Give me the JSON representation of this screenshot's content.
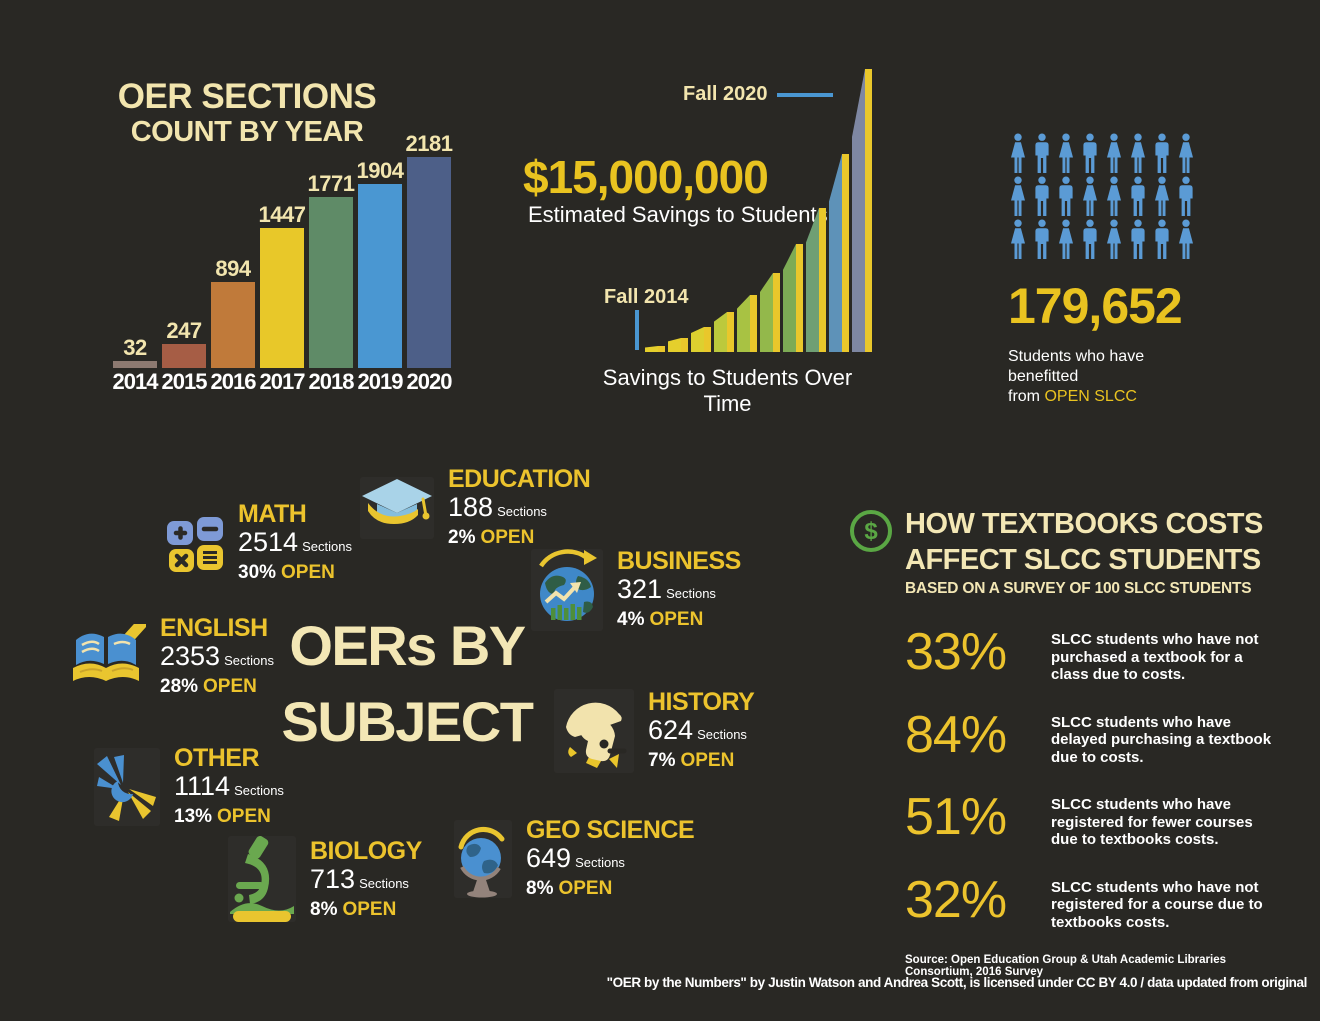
{
  "colors": {
    "background": "#292824",
    "cream": "#f2e5ae",
    "yellow": "#e9c320",
    "white": "#ffffff",
    "person_blue": "#5b9bd5",
    "dollar_green": "#5aa744"
  },
  "chart_data": [
    {
      "type": "bar",
      "title": "OER SECTIONS",
      "subtitle": "COUNT BY YEAR",
      "categories": [
        "2014",
        "2015",
        "2016",
        "2017",
        "2018",
        "2019",
        "2020"
      ],
      "values": [
        32,
        247,
        894,
        1447,
        1771,
        1904,
        2181
      ],
      "bar_colors": [
        "#8d7a71",
        "#a65d45",
        "#c07a3a",
        "#e8c829",
        "#5f8b67",
        "#4a97d2",
        "#4d5f88"
      ],
      "ylim": [
        0,
        2181
      ],
      "value_labels_shown": true,
      "grid": "off",
      "legend": "none"
    },
    {
      "type": "area",
      "title": "Savings to Students Over Time",
      "callout_value": "$15,000,000",
      "callout_label": "Estimated Savings to Students",
      "start_label": "Fall 2014",
      "end_label": "Fall 2020",
      "x_range": [
        "Fall 2014",
        "Fall 2020"
      ],
      "values_relative": [
        2,
        5,
        9,
        14,
        20,
        28,
        38,
        51,
        70,
        100
      ],
      "bar_colors": [
        "#e5cf2c",
        "#e5cf2c",
        "#ddd02f",
        "#bcc93c",
        "#a8c243",
        "#93b84b",
        "#7dab55",
        "#6f9f74",
        "#5e92b8",
        "#7e87a2"
      ],
      "stripe_color": "#e9c72b",
      "grid": "off",
      "legend": "none"
    }
  ],
  "students": {
    "count": "179,652",
    "caption_line1": "Students who have benefitted",
    "caption_line2_prefix": "from ",
    "caption_line2_highlight": "OPEN SLCC",
    "rows": [
      "FMFMFFMF",
      "FMMFFMFM",
      "FMFMFMMF"
    ]
  },
  "subjects": {
    "title_line1": "OERs BY",
    "title_line2": "SUBJECT",
    "sections_label": "Sections",
    "open_label": "OPEN",
    "items": [
      {
        "name": "MATH",
        "sections": "2514",
        "open": "30%"
      },
      {
        "name": "EDUCATION",
        "sections": "188",
        "open": "2%"
      },
      {
        "name": "ENGLISH",
        "sections": "2353",
        "open": "28%"
      },
      {
        "name": "BUSINESS",
        "sections": "321",
        "open": "4%"
      },
      {
        "name": "OTHER",
        "sections": "1114",
        "open": "13%"
      },
      {
        "name": "HISTORY",
        "sections": "624",
        "open": "7%"
      },
      {
        "name": "BIOLOGY",
        "sections": "713",
        "open": "8%"
      },
      {
        "name": "GEO SCIENCE",
        "sections": "649",
        "open": "8%"
      }
    ]
  },
  "survey": {
    "title_line1": "HOW TEXTBOOKS COSTS",
    "title_line2": "AFFECT SLCC STUDENTS",
    "subtitle": "BASED ON A SURVEY OF 100 SLCC STUDENTS",
    "stats": [
      {
        "percent": "33%",
        "description": "SLCC students who have not purchased a textbook for a class due to costs."
      },
      {
        "percent": "84%",
        "description": "SLCC students who have delayed purchasing a textbook due to costs."
      },
      {
        "percent": "51%",
        "description": "SLCC students who have registered for fewer courses due to textbooks costs."
      },
      {
        "percent": "32%",
        "description": "SLCC students who have not registered for a course due to textbooks costs."
      }
    ],
    "source": "Source: Open Education Group & Utah Academic Libraries Consortium, 2016 Survey"
  },
  "footer": {
    "license": "\"OER by the Numbers\" by Justin Watson and Andrea Scott, is licensed under CC BY 4.0 / data updated from original"
  }
}
